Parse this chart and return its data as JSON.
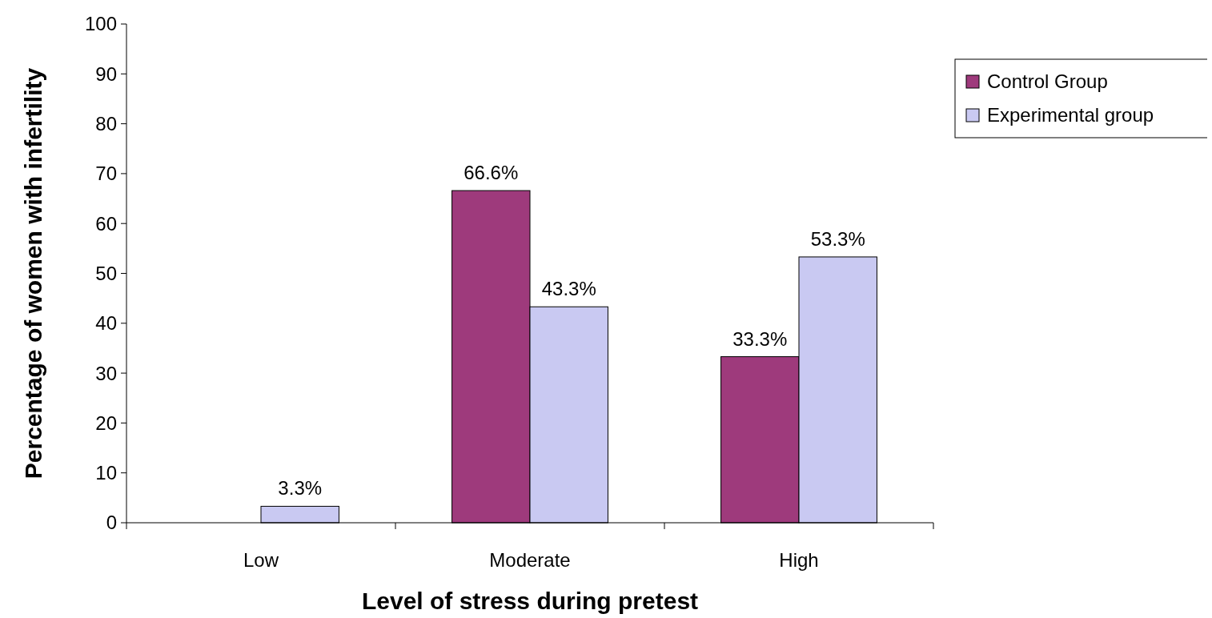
{
  "chart_data": {
    "type": "bar",
    "xlabel": "Level of stress during pretest",
    "ylabel": "Percentage of women with infertility",
    "categories": [
      "Low",
      "Moderate",
      "High"
    ],
    "series": [
      {
        "name": "Control Group",
        "color": "#9e3a7c",
        "values": [
          null,
          66.6,
          33.3
        ],
        "value_labels": [
          null,
          "66.6%",
          "33.3%"
        ]
      },
      {
        "name": "Experimental group",
        "color": "#c9c9f2",
        "values": [
          3.3,
          43.3,
          53.3
        ],
        "value_labels": [
          "3.3%",
          "43.3%",
          "53.3%"
        ]
      }
    ],
    "ylim": [
      0,
      100
    ],
    "yticks": [
      0,
      10,
      20,
      30,
      40,
      50,
      60,
      70,
      80,
      90,
      100
    ],
    "grid": false,
    "legend": "right"
  }
}
